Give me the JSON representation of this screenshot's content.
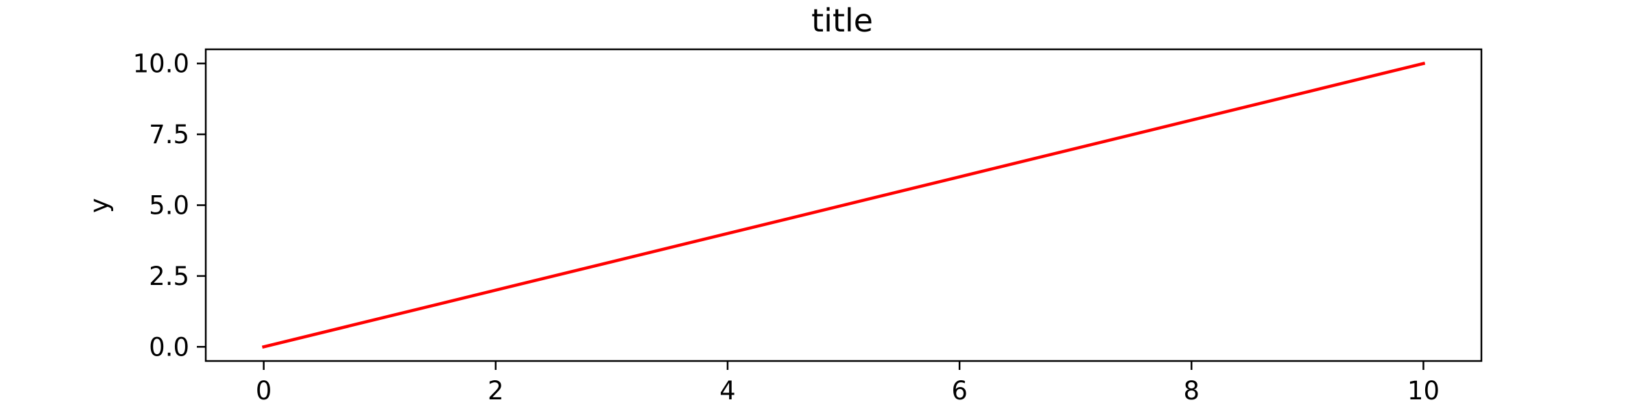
{
  "chart_data": {
    "type": "line",
    "title": "title",
    "xlabel": "",
    "ylabel": "y",
    "xlim": [
      -0.5,
      10.5
    ],
    "ylim": [
      -0.5,
      10.5
    ],
    "xticks": [
      0,
      2,
      4,
      6,
      8,
      10
    ],
    "xtick_labels": [
      "0",
      "2",
      "4",
      "6",
      "8",
      "10"
    ],
    "yticks": [
      0,
      2.5,
      5,
      7.5,
      10
    ],
    "ytick_labels": [
      "0.0",
      "2.5",
      "5.0",
      "7.5",
      "10.0"
    ],
    "grid": false,
    "series": [
      {
        "x": [
          0,
          10
        ],
        "y": [
          0,
          10
        ],
        "color": "#ff0000"
      }
    ]
  }
}
